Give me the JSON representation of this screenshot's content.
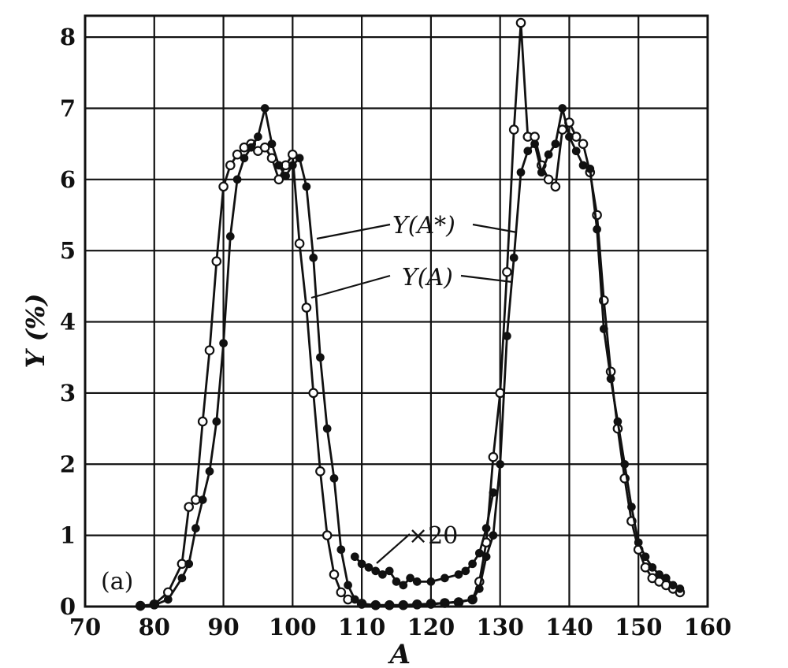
{
  "chart_data": {
    "type": "line",
    "title": "",
    "xlabel": "A",
    "ylabel": "Y (%)",
    "xlim": [
      70,
      160
    ],
    "ylim": [
      0,
      8.3
    ],
    "grid": true,
    "x_ticks": [
      "70",
      "80",
      "90",
      "100",
      "110",
      "120",
      "130",
      "140",
      "150",
      "160"
    ],
    "y_ticks": [
      "0",
      "1",
      "2",
      "3",
      "4",
      "5",
      "6",
      "7",
      "8"
    ],
    "panel_label": "(a)",
    "annotations": [
      {
        "text": "Y(A*)",
        "target_series": "open"
      },
      {
        "text": "Y(A)",
        "target_series": "filled"
      },
      {
        "text": "×20",
        "target_series": "tail (magnified)"
      }
    ],
    "series": [
      {
        "marker": "open-circle",
        "points": [
          [
            78,
            0.01
          ],
          [
            80,
            0.03
          ],
          [
            82,
            0.2
          ],
          [
            84,
            0.6
          ],
          [
            85,
            1.4
          ],
          [
            86,
            1.5
          ],
          [
            87,
            2.6
          ],
          [
            88,
            3.6
          ],
          [
            89,
            4.85
          ],
          [
            90,
            5.9
          ],
          [
            91,
            6.2
          ],
          [
            92,
            6.35
          ],
          [
            93,
            6.45
          ],
          [
            94,
            6.5
          ],
          [
            95,
            6.4
          ],
          [
            96,
            6.45
          ],
          [
            97,
            6.3
          ],
          [
            98,
            6.0
          ],
          [
            99,
            6.2
          ],
          [
            100,
            6.35
          ],
          [
            101,
            5.1
          ],
          [
            102,
            4.2
          ],
          [
            103,
            3.0
          ],
          [
            104,
            1.9
          ],
          [
            105,
            1.0
          ],
          [
            106,
            0.45
          ],
          [
            107,
            0.2
          ],
          [
            108,
            0.1
          ],
          [
            110,
            0.04
          ],
          [
            112,
            0.02
          ],
          [
            114,
            0.02
          ],
          [
            116,
            0.02
          ],
          [
            118,
            0.03
          ],
          [
            120,
            0.04
          ],
          [
            122,
            0.05
          ],
          [
            124,
            0.06
          ],
          [
            126,
            0.1
          ],
          [
            127,
            0.35
          ],
          [
            128,
            0.9
          ],
          [
            129,
            2.1
          ],
          [
            130,
            3.0
          ],
          [
            131,
            4.7
          ],
          [
            132,
            6.7
          ],
          [
            133,
            8.2
          ],
          [
            134,
            6.6
          ],
          [
            135,
            6.6
          ],
          [
            136,
            6.2
          ],
          [
            137,
            6.0
          ],
          [
            138,
            5.9
          ],
          [
            139,
            6.7
          ],
          [
            140,
            6.8
          ],
          [
            141,
            6.6
          ],
          [
            142,
            6.5
          ],
          [
            143,
            6.1
          ],
          [
            144,
            5.5
          ],
          [
            145,
            4.3
          ],
          [
            146,
            3.3
          ],
          [
            147,
            2.5
          ],
          [
            148,
            1.8
          ],
          [
            149,
            1.2
          ],
          [
            150,
            0.8
          ],
          [
            151,
            0.55
          ],
          [
            152,
            0.4
          ],
          [
            153,
            0.35
          ],
          [
            154,
            0.3
          ],
          [
            155,
            0.25
          ],
          [
            156,
            0.2
          ]
        ]
      },
      {
        "marker": "filled-circle",
        "points": [
          [
            78,
            0.0
          ],
          [
            80,
            0.02
          ],
          [
            82,
            0.1
          ],
          [
            84,
            0.4
          ],
          [
            85,
            0.6
          ],
          [
            86,
            1.1
          ],
          [
            87,
            1.5
          ],
          [
            88,
            1.9
          ],
          [
            89,
            2.6
          ],
          [
            90,
            3.7
          ],
          [
            91,
            5.2
          ],
          [
            92,
            6.0
          ],
          [
            93,
            6.3
          ],
          [
            94,
            6.45
          ],
          [
            95,
            6.6
          ],
          [
            96,
            7.0
          ],
          [
            97,
            6.5
          ],
          [
            98,
            6.2
          ],
          [
            99,
            6.05
          ],
          [
            100,
            6.2
          ],
          [
            101,
            6.3
          ],
          [
            102,
            5.9
          ],
          [
            103,
            4.9
          ],
          [
            104,
            3.5
          ],
          [
            105,
            2.5
          ],
          [
            106,
            1.8
          ],
          [
            107,
            0.8
          ],
          [
            108,
            0.3
          ],
          [
            109,
            0.1
          ],
          [
            110,
            0.03
          ],
          [
            112,
            0.01
          ],
          [
            114,
            0.01
          ],
          [
            116,
            0.02
          ],
          [
            118,
            0.02
          ],
          [
            120,
            0.03
          ],
          [
            122,
            0.05
          ],
          [
            124,
            0.07
          ],
          [
            126,
            0.1
          ],
          [
            127,
            0.25
          ],
          [
            128,
            0.7
          ],
          [
            129,
            1.0
          ],
          [
            130,
            2.0
          ],
          [
            131,
            3.8
          ],
          [
            132,
            4.9
          ],
          [
            133,
            6.1
          ],
          [
            134,
            6.4
          ],
          [
            135,
            6.5
          ],
          [
            136,
            6.1
          ],
          [
            137,
            6.35
          ],
          [
            138,
            6.5
          ],
          [
            139,
            7.0
          ],
          [
            140,
            6.6
          ],
          [
            141,
            6.4
          ],
          [
            142,
            6.2
          ],
          [
            143,
            6.15
          ],
          [
            144,
            5.3
          ],
          [
            145,
            3.9
          ],
          [
            146,
            3.2
          ],
          [
            147,
            2.6
          ],
          [
            148,
            2.0
          ],
          [
            149,
            1.4
          ],
          [
            150,
            0.9
          ],
          [
            151,
            0.7
          ],
          [
            152,
            0.55
          ],
          [
            153,
            0.45
          ],
          [
            154,
            0.4
          ],
          [
            155,
            0.3
          ],
          [
            156,
            0.25
          ]
        ]
      },
      {
        "marker": "filled-circle",
        "note": "×20",
        "points": [
          [
            109,
            0.7
          ],
          [
            110,
            0.6
          ],
          [
            111,
            0.55
          ],
          [
            112,
            0.5
          ],
          [
            113,
            0.45
          ],
          [
            114,
            0.5
          ],
          [
            115,
            0.35
          ],
          [
            116,
            0.3
          ],
          [
            117,
            0.4
          ],
          [
            118,
            0.35
          ],
          [
            120,
            0.35
          ],
          [
            122,
            0.4
          ],
          [
            124,
            0.45
          ],
          [
            125,
            0.5
          ],
          [
            126,
            0.6
          ],
          [
            127,
            0.75
          ],
          [
            128,
            1.1
          ],
          [
            129,
            1.6
          ]
        ]
      }
    ]
  }
}
